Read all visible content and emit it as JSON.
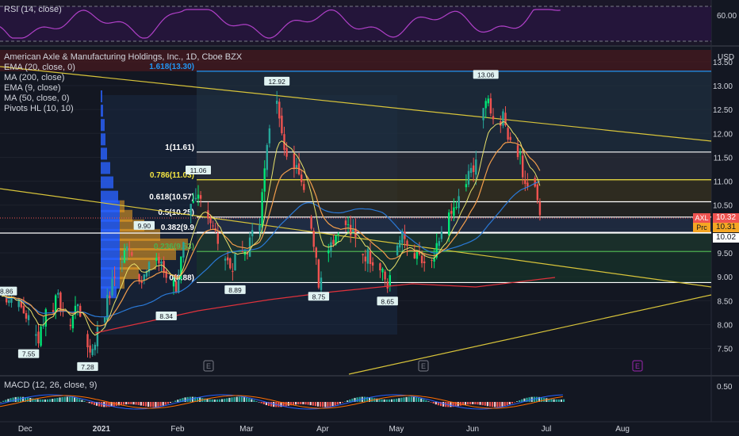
{
  "rsi": {
    "label": "RSI (14, close)",
    "level": "60.00"
  },
  "main": {
    "title": "American Axle & Manufacturing Holdings, Inc., 1D, Cboe BZX",
    "indicators": [
      "EMA (20, close, 0)",
      "MA (200, close)",
      "EMA (9, close)",
      "MA (50, close, 0)",
      "Pivots HL (10, 10)"
    ],
    "currency": "USD"
  },
  "macd": {
    "label": "MACD (12, 26, close, 9)",
    "level": "0.50"
  },
  "badges": {
    "symbol": "AXL",
    "symbol_price": "10.32",
    "prc": "Prc",
    "prc_price": "10.31",
    "line_price": "10.02"
  },
  "colors": {
    "bg": "#131722",
    "up": "#26a69a",
    "bright_up": "#00e676",
    "down": "#ef5350",
    "trend": "#d8c43a",
    "fib_white": "#ffffff",
    "fib_yellow": "#f5e642",
    "fib_blue": "#2196f3",
    "rsi_line": "#b040c8",
    "ema20": "#f29d4b",
    "ema9": "#e8e06a",
    "ma50": "#2a79d6",
    "ma200": "#e0323c"
  },
  "chart_data": [
    {
      "type": "line",
      "title": "RSI (14, close)",
      "y_axis_labels": [
        "60.00"
      ]
    },
    {
      "type": "candlestick",
      "title": "American Axle & Manufacturing Holdings, Inc., 1D, Cboe BZX",
      "ylabel": "USD",
      "ylim": [
        7.05,
        13.6
      ],
      "y_ticks": [
        "13.50",
        "13.00",
        "12.50",
        "12.00",
        "11.50",
        "11.00",
        "10.50",
        "10.00",
        "9.50",
        "9.00",
        "8.50",
        "8.00",
        "7.50"
      ],
      "x_ticks": [
        "Dec",
        "2021",
        "Feb",
        "Mar",
        "Apr",
        "May",
        "Jun",
        "Jul",
        "Aug"
      ],
      "close_path": [
        [
          "Nov 27",
          8.6
        ],
        [
          "Dec 3",
          8.2
        ],
        [
          "Dec 8",
          7.7
        ],
        [
          "Dec 11",
          8.3
        ],
        [
          "Dec 16",
          8.5
        ],
        [
          "Dec 21",
          8.0
        ],
        [
          "Dec 24",
          8.5
        ],
        [
          "Dec 29",
          7.4
        ],
        [
          "Jan 4",
          8.3
        ],
        [
          "Jan 8",
          9.0
        ],
        [
          "Jan 14",
          9.7
        ],
        [
          "Jan 19",
          8.9
        ],
        [
          "Jan 25",
          9.4
        ],
        [
          "Jan 29",
          9.0
        ],
        [
          "Feb 2",
          8.8
        ],
        [
          "Feb 8",
          10.4
        ],
        [
          "Feb 12",
          10.8
        ],
        [
          "Feb 17",
          10.0
        ],
        [
          "Feb 24",
          9.2
        ],
        [
          "Mar 3",
          9.6
        ],
        [
          "Mar 8",
          10.2
        ],
        [
          "Mar 11",
          11.7
        ],
        [
          "Mar 15",
          12.8
        ],
        [
          "Mar 19",
          11.5
        ],
        [
          "Mar 24",
          11.3
        ],
        [
          "Mar 29",
          10.1
        ],
        [
          "Apr 1",
          8.9
        ],
        [
          "Apr 5",
          9.7
        ],
        [
          "Apr 12",
          10.1
        ],
        [
          "Apr 19",
          9.5
        ],
        [
          "Apr 26",
          9.3
        ],
        [
          "Apr 29",
          8.8
        ],
        [
          "May 4",
          9.9
        ],
        [
          "May 10",
          9.4
        ],
        [
          "May 17",
          9.2
        ],
        [
          "May 20",
          9.7
        ],
        [
          "May 25",
          10.3
        ],
        [
          "May 28",
          10.6
        ],
        [
          "Jun 2",
          11.2
        ],
        [
          "Jun 4",
          11.5
        ],
        [
          "Jun 8",
          12.8
        ],
        [
          "Jun 11",
          12.4
        ],
        [
          "Jun 15",
          12.3
        ],
        [
          "Jun 18",
          11.9
        ],
        [
          "Jun 22",
          11.5
        ],
        [
          "Jun 24",
          10.8
        ],
        [
          "Jun 28",
          11.0
        ],
        [
          "Jun 30",
          10.32
        ]
      ],
      "fibonacci": [
        {
          "label": "1.618(13.30)",
          "value": 13.3
        },
        {
          "label": "1(11.61)",
          "value": 11.61
        },
        {
          "label": "0.786(11.03)",
          "value": 11.03
        },
        {
          "label": "0.618(10.57)",
          "value": 10.57
        },
        {
          "label": "0.5(10.25)",
          "value": 10.25
        },
        {
          "label": "0.382(9.9",
          "value": 9.93
        },
        {
          "label": "0.236(9.53)",
          "value": 9.53
        },
        {
          "label": "0(8.88)",
          "value": 8.88
        }
      ],
      "pivots": [
        {
          "label": "8.86",
          "x": "Nov 25",
          "value": 8.86
        },
        {
          "label": "7.55",
          "x": "Dec 4",
          "value": 7.55
        },
        {
          "label": "7.28",
          "x": "Dec 28",
          "value": 7.28
        },
        {
          "label": "9.90",
          "x": "Jan 20",
          "value": 9.9
        },
        {
          "label": "8.34",
          "x": "Jan 29",
          "value": 8.34
        },
        {
          "label": "11.06",
          "x": "Feb 11",
          "value": 11.06
        },
        {
          "label": "8.89",
          "x": "Feb 26",
          "value": 8.89
        },
        {
          "label": "12.92",
          "x": "Mar 15",
          "value": 12.92
        },
        {
          "label": "8.75",
          "x": "Apr 1",
          "value": 8.75
        },
        {
          "label": "8.65",
          "x": "Apr 29",
          "value": 8.65
        },
        {
          "label": "13.06",
          "x": "Jun 8",
          "value": 13.06
        }
      ],
      "last_price": 10.32,
      "prc_price": 10.31,
      "line_price": 10.02
    },
    {
      "type": "bar",
      "title": "MACD (12, 26, close, 9)",
      "y_axis_labels": [
        "0.50"
      ]
    }
  ]
}
